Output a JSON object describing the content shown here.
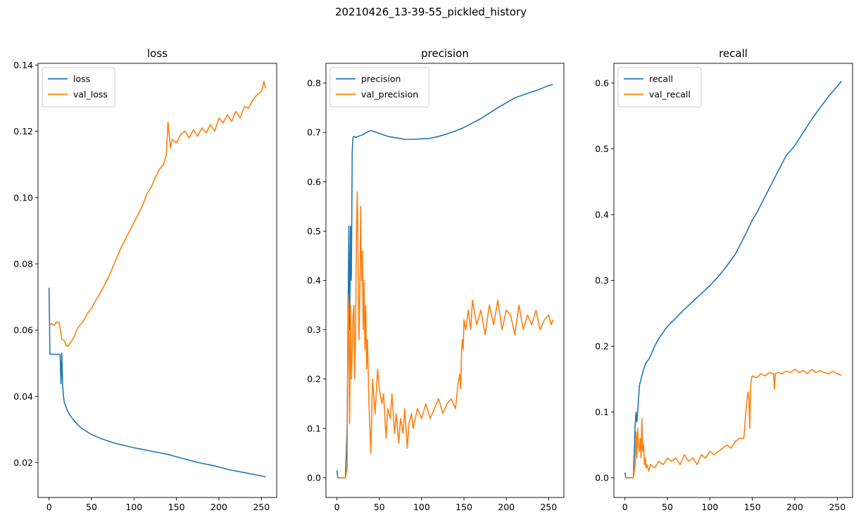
{
  "figure": {
    "suptitle": "20210426_13-39-55_pickled_history",
    "colors": {
      "train": "#1f77b4",
      "val": "#ff7f0e",
      "axes": "#000000",
      "background": "#ffffff"
    }
  },
  "chart_data": [
    {
      "type": "line",
      "title": "loss",
      "xlabel": "",
      "ylabel": "",
      "xlim": [
        -13,
        268
      ],
      "ylim": [
        0.0095,
        0.1405
      ],
      "xticks": [
        0,
        50,
        100,
        150,
        200,
        250
      ],
      "yticks": [
        0.02,
        0.04,
        0.06,
        0.08,
        0.1,
        0.12,
        0.14
      ],
      "ytick_labels": [
        "0.02",
        "0.04",
        "0.06",
        "0.08",
        "0.10",
        "0.12",
        "0.14"
      ],
      "grid": false,
      "legend": {
        "position": "top-left",
        "entries": [
          "loss",
          "val_loss"
        ]
      },
      "series": [
        {
          "name": "loss",
          "color": "#1f77b4",
          "x": [
            0,
            1,
            2,
            5,
            10,
            13,
            14,
            15,
            16,
            17,
            18,
            20,
            22,
            25,
            30,
            35,
            40,
            50,
            60,
            70,
            80,
            90,
            100,
            110,
            120,
            130,
            140,
            150,
            160,
            170,
            180,
            190,
            200,
            210,
            220,
            230,
            240,
            250,
            255
          ],
          "y": [
            0.0728,
            0.0528,
            0.0527,
            0.0527,
            0.0527,
            0.0527,
            0.0438,
            0.053,
            0.0432,
            0.04,
            0.0382,
            0.0368,
            0.0355,
            0.0342,
            0.0325,
            0.0311,
            0.0301,
            0.0285,
            0.0274,
            0.0265,
            0.0257,
            0.0251,
            0.0245,
            0.024,
            0.0235,
            0.023,
            0.0225,
            0.0218,
            0.0211,
            0.0204,
            0.0198,
            0.0193,
            0.0187,
            0.018,
            0.0175,
            0.017,
            0.0165,
            0.016,
            0.0157
          ]
        },
        {
          "name": "val_loss",
          "color": "#ff7f0e",
          "x": [
            0,
            3,
            6,
            9,
            12,
            15,
            18,
            20,
            22,
            25,
            28,
            30,
            32,
            35,
            40,
            45,
            50,
            55,
            60,
            65,
            70,
            75,
            80,
            85,
            90,
            95,
            100,
            105,
            110,
            115,
            120,
            125,
            130,
            135,
            138,
            140,
            143,
            145,
            150,
            155,
            160,
            165,
            170,
            175,
            180,
            185,
            190,
            195,
            200,
            205,
            210,
            215,
            220,
            225,
            230,
            235,
            240,
            245,
            250,
            253,
            255
          ],
          "y": [
            0.0612,
            0.062,
            0.0615,
            0.0625,
            0.0622,
            0.0572,
            0.0568,
            0.0555,
            0.055,
            0.0562,
            0.0572,
            0.0582,
            0.0598,
            0.061,
            0.0625,
            0.065,
            0.0665,
            0.069,
            0.071,
            0.0735,
            0.076,
            0.079,
            0.082,
            0.085,
            0.0875,
            0.09,
            0.0925,
            0.095,
            0.0975,
            0.101,
            0.103,
            0.106,
            0.1085,
            0.11,
            0.113,
            0.1228,
            0.115,
            0.1175,
            0.1165,
            0.119,
            0.12,
            0.118,
            0.1205,
            0.1185,
            0.121,
            0.1195,
            0.122,
            0.12,
            0.124,
            0.1225,
            0.125,
            0.123,
            0.126,
            0.124,
            0.1275,
            0.127,
            0.1295,
            0.131,
            0.132,
            0.135,
            0.133
          ]
        }
      ]
    },
    {
      "type": "line",
      "title": "precision",
      "xlabel": "",
      "ylabel": "",
      "xlim": [
        -13,
        268
      ],
      "ylim": [
        -0.04,
        0.84
      ],
      "xticks": [
        0,
        50,
        100,
        150,
        200,
        250
      ],
      "yticks": [
        0.0,
        0.1,
        0.2,
        0.3,
        0.4,
        0.5,
        0.6,
        0.7,
        0.8
      ],
      "ytick_labels": [
        "0.0",
        "0.1",
        "0.2",
        "0.3",
        "0.4",
        "0.5",
        "0.6",
        "0.7",
        "0.8"
      ],
      "grid": false,
      "legend": {
        "position": "top-left",
        "entries": [
          "precision",
          "val_precision"
        ]
      },
      "series": [
        {
          "name": "precision",
          "color": "#1f77b4",
          "x": [
            0,
            1,
            3,
            5,
            8,
            10,
            12,
            14,
            15,
            16,
            17,
            18,
            19,
            20,
            22,
            25,
            30,
            35,
            40,
            50,
            60,
            70,
            80,
            90,
            100,
            110,
            120,
            130,
            140,
            150,
            160,
            170,
            180,
            190,
            200,
            210,
            220,
            230,
            240,
            250,
            255
          ],
          "y": [
            0.015,
            0.0,
            0.0,
            0.0,
            0.0,
            0.0,
            0.1,
            0.51,
            0.3,
            0.51,
            0.4,
            0.66,
            0.69,
            0.692,
            0.69,
            0.692,
            0.695,
            0.7,
            0.704,
            0.698,
            0.692,
            0.689,
            0.686,
            0.686,
            0.687,
            0.688,
            0.692,
            0.697,
            0.703,
            0.71,
            0.719,
            0.728,
            0.739,
            0.75,
            0.76,
            0.77,
            0.776,
            0.782,
            0.788,
            0.795,
            0.797
          ]
        },
        {
          "name": "val_precision",
          "color": "#ff7f0e",
          "x": [
            0,
            5,
            10,
            12,
            13,
            14,
            15,
            16,
            17,
            18,
            19,
            20,
            21,
            22,
            23,
            24,
            25,
            26,
            27,
            28,
            29,
            30,
            31,
            32,
            33,
            34,
            35,
            36,
            38,
            40,
            42,
            45,
            48,
            50,
            53,
            55,
            58,
            60,
            63,
            65,
            68,
            70,
            73,
            75,
            78,
            80,
            83,
            85,
            88,
            90,
            95,
            100,
            105,
            110,
            115,
            120,
            125,
            130,
            135,
            140,
            143,
            145,
            146,
            147,
            148,
            149,
            150,
            152,
            155,
            158,
            160,
            165,
            170,
            175,
            180,
            185,
            190,
            195,
            200,
            205,
            210,
            215,
            220,
            225,
            230,
            235,
            240,
            245,
            250,
            253,
            255
          ],
          "y": [
            0.0,
            0.0,
            0.0,
            0.02,
            0.37,
            0.3,
            0.11,
            0.35,
            0.2,
            0.25,
            0.33,
            0.35,
            0.2,
            0.3,
            0.5,
            0.58,
            0.42,
            0.28,
            0.38,
            0.55,
            0.4,
            0.46,
            0.3,
            0.4,
            0.26,
            0.35,
            0.22,
            0.28,
            0.14,
            0.05,
            0.2,
            0.13,
            0.22,
            0.18,
            0.15,
            0.17,
            0.08,
            0.14,
            0.12,
            0.17,
            0.09,
            0.13,
            0.07,
            0.12,
            0.09,
            0.14,
            0.06,
            0.11,
            0.13,
            0.1,
            0.14,
            0.12,
            0.15,
            0.12,
            0.14,
            0.16,
            0.13,
            0.15,
            0.16,
            0.14,
            0.19,
            0.21,
            0.18,
            0.25,
            0.28,
            0.26,
            0.32,
            0.3,
            0.34,
            0.3,
            0.36,
            0.31,
            0.34,
            0.29,
            0.35,
            0.31,
            0.36,
            0.3,
            0.34,
            0.33,
            0.29,
            0.35,
            0.3,
            0.33,
            0.31,
            0.34,
            0.3,
            0.32,
            0.33,
            0.31,
            0.32
          ]
        }
      ]
    },
    {
      "type": "line",
      "title": "recall",
      "xlabel": "",
      "ylabel": "",
      "xlim": [
        -13,
        268
      ],
      "ylim": [
        -0.03,
        0.63
      ],
      "xticks": [
        0,
        50,
        100,
        150,
        200,
        250
      ],
      "yticks": [
        0.0,
        0.1,
        0.2,
        0.3,
        0.4,
        0.5,
        0.6
      ],
      "ytick_labels": [
        "0.0",
        "0.1",
        "0.2",
        "0.3",
        "0.4",
        "0.5",
        "0.6"
      ],
      "grid": false,
      "legend": {
        "position": "top-left",
        "entries": [
          "recall",
          "val_recall"
        ]
      },
      "series": [
        {
          "name": "recall",
          "color": "#1f77b4",
          "x": [
            0,
            1,
            3,
            5,
            8,
            10,
            12,
            13,
            14,
            15,
            16,
            17,
            18,
            20,
            22,
            25,
            28,
            30,
            35,
            40,
            50,
            60,
            70,
            80,
            90,
            100,
            110,
            120,
            130,
            140,
            145,
            150,
            155,
            160,
            170,
            180,
            190,
            200,
            210,
            220,
            230,
            240,
            250,
            255
          ],
          "y": [
            0.008,
            0.0,
            0.0,
            0.0,
            0.0,
            0.0,
            0.08,
            0.1,
            0.085,
            0.1,
            0.12,
            0.14,
            0.145,
            0.155,
            0.165,
            0.175,
            0.18,
            0.185,
            0.2,
            0.212,
            0.23,
            0.243,
            0.256,
            0.268,
            0.28,
            0.292,
            0.306,
            0.322,
            0.34,
            0.365,
            0.378,
            0.392,
            0.402,
            0.415,
            0.44,
            0.465,
            0.49,
            0.505,
            0.525,
            0.545,
            0.563,
            0.58,
            0.595,
            0.603
          ]
        },
        {
          "name": "val_recall",
          "color": "#ff7f0e",
          "x": [
            0,
            5,
            10,
            12,
            13,
            14,
            15,
            16,
            17,
            18,
            19,
            20,
            21,
            22,
            23,
            24,
            25,
            26,
            28,
            30,
            35,
            40,
            45,
            50,
            55,
            60,
            65,
            70,
            75,
            80,
            85,
            90,
            95,
            100,
            105,
            110,
            115,
            120,
            125,
            130,
            135,
            140,
            143,
            145,
            146,
            147,
            148,
            149,
            150,
            155,
            160,
            165,
            170,
            175,
            176,
            177,
            180,
            185,
            190,
            195,
            200,
            205,
            210,
            215,
            220,
            225,
            230,
            235,
            240,
            245,
            250,
            253,
            255
          ],
          "y": [
            0.0,
            0.0,
            0.0,
            0.02,
            0.07,
            0.03,
            0.075,
            0.05,
            0.04,
            0.06,
            0.03,
            0.09,
            0.04,
            0.05,
            0.02,
            0.03,
            0.015,
            0.02,
            0.01,
            0.02,
            0.015,
            0.025,
            0.02,
            0.03,
            0.025,
            0.03,
            0.02,
            0.035,
            0.025,
            0.03,
            0.02,
            0.035,
            0.03,
            0.04,
            0.035,
            0.04,
            0.045,
            0.05,
            0.045,
            0.055,
            0.06,
            0.06,
            0.11,
            0.13,
            0.12,
            0.075,
            0.14,
            0.15,
            0.155,
            0.152,
            0.158,
            0.155,
            0.16,
            0.158,
            0.135,
            0.158,
            0.16,
            0.158,
            0.162,
            0.16,
            0.165,
            0.16,
            0.163,
            0.158,
            0.165,
            0.16,
            0.163,
            0.16,
            0.158,
            0.162,
            0.158,
            0.157,
            0.156
          ]
        }
      ]
    }
  ]
}
